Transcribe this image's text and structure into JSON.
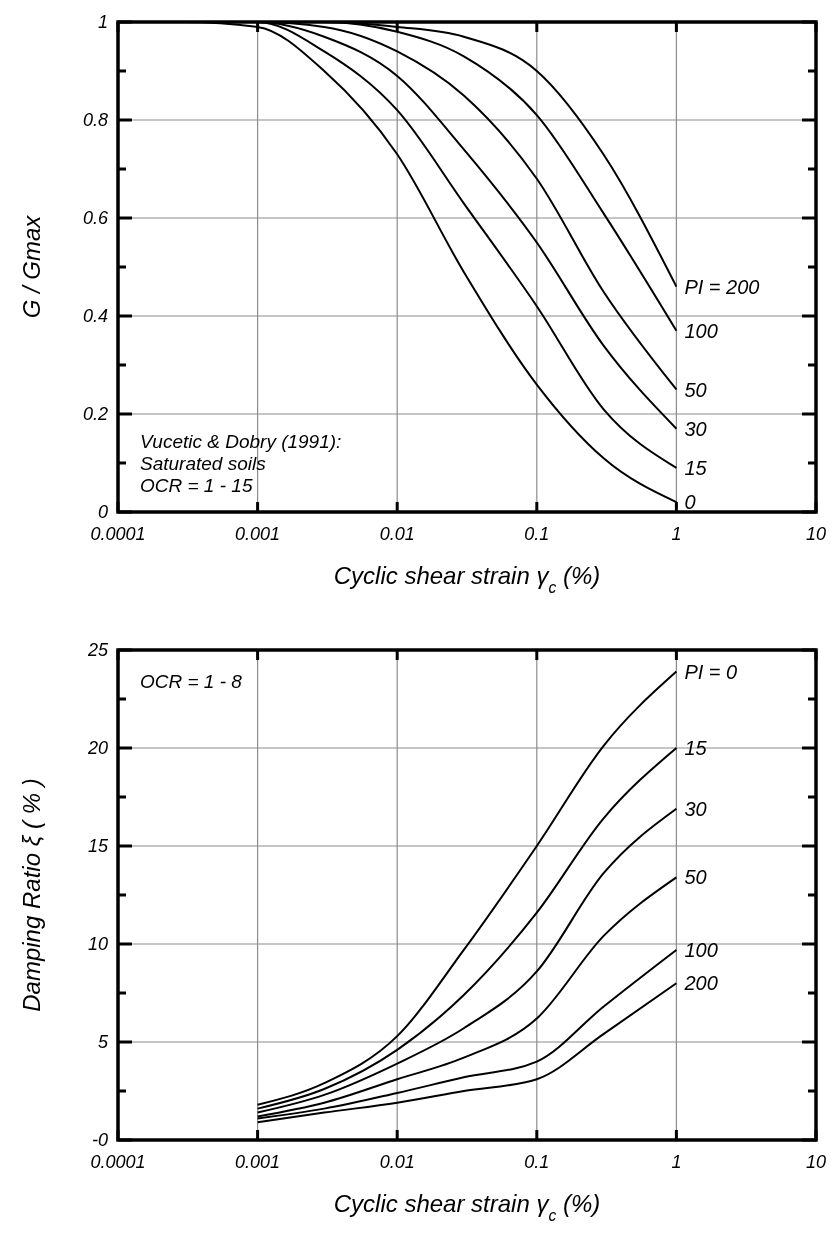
{
  "chart_data": [
    {
      "type": "line",
      "xlabel": "Cyclic shear strain γ$_{c}$ (%)",
      "ylabel": "G / Gmax",
      "log": "x",
      "grid": true,
      "xlim": [
        0.0001,
        10
      ],
      "xticks": [
        0.0001,
        0.001,
        0.01,
        0.1,
        1,
        10
      ],
      "ylim": [
        0,
        1
      ],
      "yticks": [
        0,
        {
          "value": 0.1,
          "label": null
        },
        0.2,
        {
          "value": 0.3,
          "label": null
        },
        0.4,
        {
          "value": 0.5,
          "label": null
        },
        0.6,
        {
          "value": 0.7,
          "label": null
        },
        0.8,
        {
          "value": 0.9,
          "label": null
        },
        1
      ],
      "annotations": [
        "Vucetic & Dobry (1991):\nSaturated soils\nOCR = 1 - 15"
      ],
      "series": [
        {
          "name": "0",
          "color": "#000000",
          "x": [
            0.0001,
            0.0003,
            0.001,
            0.003,
            0.01,
            0.03,
            0.1,
            0.3,
            1
          ],
          "values": [
            1,
            1,
            0.99,
            0.9,
            0.73,
            0.49,
            0.26,
            0.11,
            0.02
          ]
        },
        {
          "name": "15",
          "color": "#000000",
          "x": [
            0.0001,
            0.0003,
            0.001,
            0.003,
            0.01,
            0.03,
            0.1,
            0.3,
            1
          ],
          "values": [
            1,
            1,
            1,
            0.94,
            0.82,
            0.63,
            0.42,
            0.21,
            0.09
          ]
        },
        {
          "name": "30",
          "color": "#000000",
          "x": [
            0.0001,
            0.0003,
            0.001,
            0.003,
            0.01,
            0.03,
            0.1,
            0.3,
            1
          ],
          "values": [
            1,
            1,
            1,
            0.97,
            0.89,
            0.74,
            0.55,
            0.34,
            0.17
          ]
        },
        {
          "name": "50",
          "color": "#000000",
          "x": [
            0.0001,
            0.0003,
            0.001,
            0.003,
            0.01,
            0.03,
            0.1,
            0.3,
            1
          ],
          "values": [
            1,
            1,
            1,
            0.99,
            0.94,
            0.85,
            0.68,
            0.45,
            0.25
          ]
        },
        {
          "name": "100",
          "color": "#000000",
          "x": [
            0.0001,
            0.0003,
            0.001,
            0.003,
            0.01,
            0.03,
            0.1,
            0.3,
            1
          ],
          "values": [
            1,
            1,
            1,
            1,
            0.98,
            0.93,
            0.81,
            0.61,
            0.37
          ]
        },
        {
          "name": "PI = 200",
          "color": "#000000",
          "x": [
            0.0001,
            0.0003,
            0.001,
            0.003,
            0.01,
            0.03,
            0.1,
            0.3,
            1
          ],
          "values": [
            1,
            1,
            1,
            1,
            0.99,
            0.97,
            0.9,
            0.73,
            0.46
          ]
        }
      ]
    },
    {
      "type": "line",
      "xlabel": "Cyclic shear strain γ$_{c}$ (%)",
      "ylabel": "Damping Ratio ξ ( % )",
      "log": "x",
      "grid": true,
      "xlim": [
        0.0001,
        10
      ],
      "xticks": [
        0.0001,
        0.001,
        0.01,
        0.1,
        1,
        10
      ],
      "ylim": [
        0,
        25
      ],
      "yticks": [
        {
          "value": 0,
          "label": "-0"
        },
        {
          "value": 2.5,
          "label": null
        },
        5,
        {
          "value": 7.5,
          "label": null
        },
        10,
        {
          "value": 12.5,
          "label": null
        },
        15,
        {
          "value": 17.5,
          "label": null
        },
        20,
        {
          "value": 22.5,
          "label": null
        },
        25
      ],
      "annotations": [
        "OCR = 1 - 8"
      ],
      "series": [
        {
          "name": "PI = 0",
          "color": "#000000",
          "x": [
            0.001,
            0.003,
            0.01,
            0.03,
            0.1,
            0.3,
            1
          ],
          "values": [
            1.8,
            2.9,
            5.3,
            9.7,
            15,
            20.1,
            23.9
          ]
        },
        {
          "name": "15",
          "color": "#000000",
          "x": [
            0.001,
            0.003,
            0.01,
            0.03,
            0.1,
            0.3,
            1
          ],
          "values": [
            1.6,
            2.6,
            4.6,
            7.4,
            11.6,
            16.4,
            20
          ]
        },
        {
          "name": "30",
          "color": "#000000",
          "x": [
            0.001,
            0.003,
            0.01,
            0.03,
            0.1,
            0.3,
            1
          ],
          "values": [
            1.4,
            2.3,
            3.9,
            5.7,
            8.6,
            13.6,
            16.9
          ]
        },
        {
          "name": "50",
          "color": "#000000",
          "x": [
            0.001,
            0.003,
            0.01,
            0.03,
            0.1,
            0.3,
            1
          ],
          "values": [
            1.2,
            1.9,
            3.1,
            4.2,
            6.2,
            10.4,
            13.4
          ]
        },
        {
          "name": "100",
          "color": "#000000",
          "x": [
            0.001,
            0.003,
            0.01,
            0.03,
            0.1,
            0.3,
            1
          ],
          "values": [
            1.1,
            1.6,
            2.4,
            3.2,
            4,
            6.8,
            9.7
          ]
        },
        {
          "name": "200",
          "color": "#000000",
          "x": [
            0.001,
            0.003,
            0.01,
            0.03,
            0.1,
            0.3,
            1
          ],
          "values": [
            0.9,
            1.4,
            1.9,
            2.5,
            3.1,
            5.4,
            8
          ]
        }
      ]
    }
  ]
}
